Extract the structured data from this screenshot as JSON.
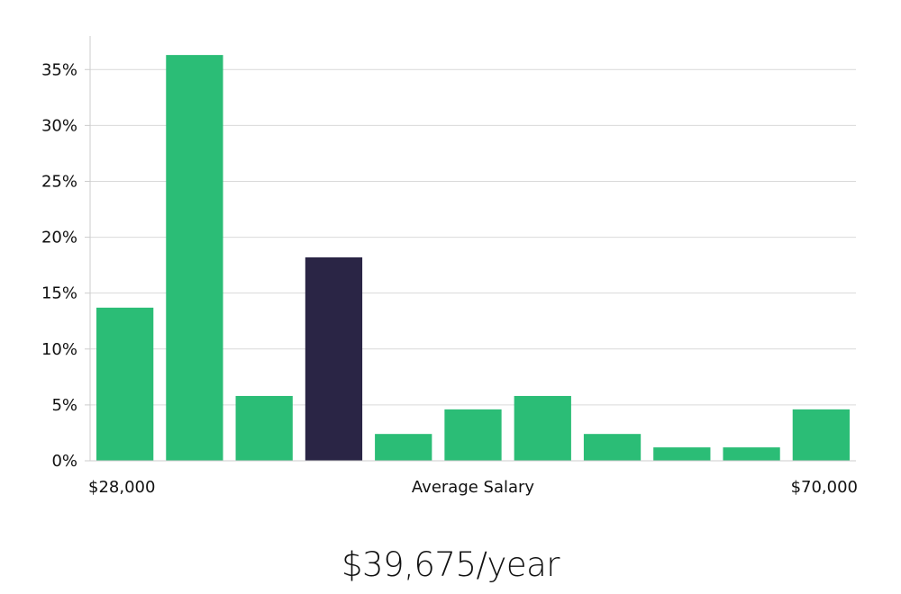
{
  "chart_data": {
    "type": "bar",
    "values": [
      13.7,
      36.3,
      5.8,
      18.2,
      2.4,
      4.6,
      5.8,
      2.4,
      1.2,
      1.2,
      4.6
    ],
    "highlight_index": 3,
    "ylim": [
      0,
      38
    ],
    "yticks": [
      0,
      5,
      10,
      15,
      20,
      25,
      30,
      35
    ],
    "ytick_labels": [
      "0%",
      "5%",
      "10%",
      "15%",
      "20%",
      "25%",
      "30%",
      "35%"
    ],
    "x_min_label": "$28,000",
    "x_center_label": "Average Salary",
    "x_max_label": "$70,000",
    "colors": {
      "bar": "#2bbd76",
      "highlight": "#2a2545",
      "grid": "#d9d9d9",
      "axis": "#cccccc"
    }
  },
  "summary": {
    "salary": "$39,675/year"
  }
}
